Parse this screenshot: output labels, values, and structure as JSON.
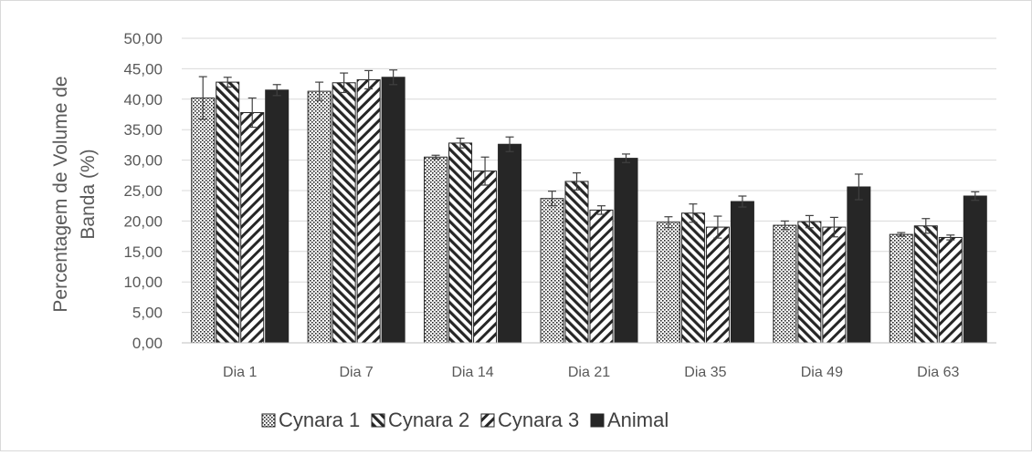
{
  "chart_data": {
    "type": "bar",
    "title": "",
    "xlabel": "",
    "ylabel_lines": [
      "Percentagem de Volume de",
      "Banda (%)"
    ],
    "ylim": [
      0,
      50
    ],
    "yticks": [
      "0,00",
      "5,00",
      "10,00",
      "15,00",
      "20,00",
      "25,00",
      "30,00",
      "35,00",
      "40,00",
      "45,00",
      "50,00"
    ],
    "grid": true,
    "legend_position": "bottom",
    "categories": [
      "Dia 1",
      "Dia 7",
      "Dia 14",
      "Dia 21",
      "Dia 35",
      "Dia 49",
      "Dia 63"
    ],
    "series": [
      {
        "name": "Cynara 1",
        "pattern": "dots",
        "values": [
          40.2,
          41.3,
          30.5,
          23.7,
          19.8,
          19.3,
          17.8
        ],
        "errors": [
          3.5,
          1.5,
          0.3,
          1.2,
          0.9,
          0.7,
          0.3
        ]
      },
      {
        "name": "Cynara 2",
        "pattern": "wide-diagonal",
        "values": [
          42.8,
          42.7,
          32.8,
          26.5,
          21.3,
          19.9,
          19.2
        ],
        "errors": [
          0.8,
          1.6,
          0.8,
          1.4,
          1.5,
          1.0,
          1.2
        ]
      },
      {
        "name": "Cynara 3",
        "pattern": "diagonal",
        "values": [
          37.8,
          43.2,
          28.2,
          21.8,
          19.0,
          19.0,
          17.3
        ],
        "errors": [
          2.4,
          1.5,
          2.3,
          0.7,
          1.8,
          1.6,
          0.4
        ]
      },
      {
        "name": "Animal",
        "pattern": "solid",
        "values": [
          41.5,
          43.6,
          32.6,
          30.3,
          23.2,
          25.6,
          24.1
        ],
        "errors": [
          0.9,
          1.2,
          1.2,
          0.7,
          0.9,
          2.1,
          0.7
        ]
      }
    ],
    "colors": {
      "bar_edge": "#262626",
      "solid_fill": "#262626",
      "grid": "#d9d9d9",
      "axis": "#bfbfbf",
      "error_bar": "#404040"
    }
  }
}
